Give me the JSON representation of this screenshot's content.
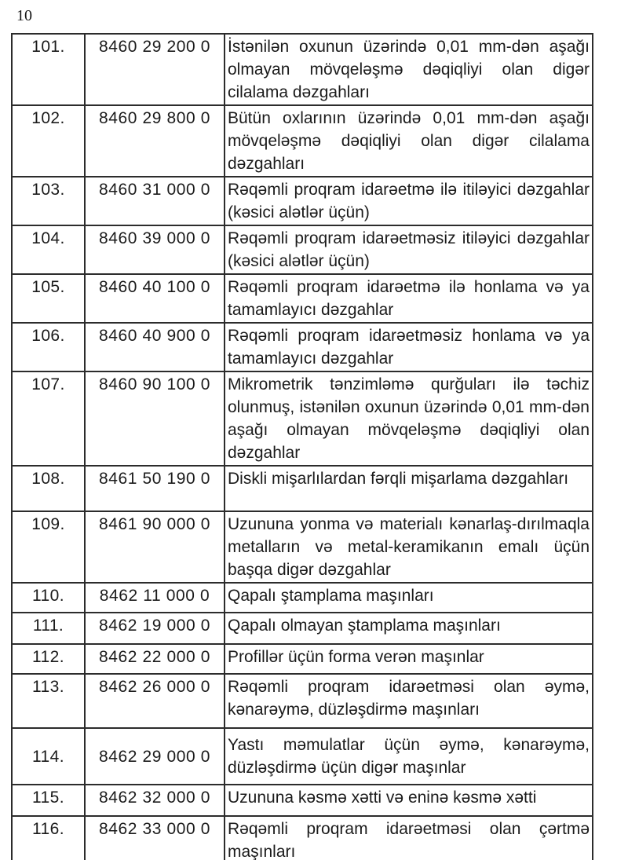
{
  "page": {
    "number": "10"
  },
  "colors": {
    "text": "#1b1b1b",
    "border": "#2c2c2c",
    "background": "#ffffff"
  },
  "table": {
    "rows": [
      {
        "no": "101.",
        "code": "8460 29 200 0",
        "desc": "İstənilən oxunun üzərində 0,01 mm-dən aşağı olmayan mövqeləşmə dəqiqliyi olan digər cilalama dəzgahları"
      },
      {
        "no": "102.",
        "code": "8460 29 800 0",
        "desc": "Bütün oxlarının üzərində 0,01 mm-dən aşağı mövqeləşmə dəqiqliyi olan digər cilalama dəzgahları"
      },
      {
        "no": "103.",
        "code": "8460 31 000 0",
        "desc": "Rəqəmli proqram idarəetmə ilə itiləyici dəzgahlar (kəsici alətlər üçün)"
      },
      {
        "no": "104.",
        "code": "8460 39 000 0",
        "desc": "Rəqəmli proqram idarəetməsiz itiləyici dəzgahlar (kəsici alətlər üçün)"
      },
      {
        "no": "105.",
        "code": "8460 40 100 0",
        "desc": "Rəqəmli proqram idarəetmə ilə honlama və ya tamamlayıcı dəzgahlar"
      },
      {
        "no": "106.",
        "code": "8460 40 900 0",
        "desc": "Rəqəmli proqram idarəetməsiz honlama və ya tamamlayıcı dəzgahlar"
      },
      {
        "no": "107.",
        "code": "8460 90 100 0",
        "desc": "Mikrometrik tənzimləmə qurğuları ilə təchiz olunmuş, istənilən oxunun üzərində 0,01 mm-dən aşağı olmayan mövqeləşmə dəqiqliyi olan dəzgahlar"
      },
      {
        "no": "108.",
        "code": "8461 50 190 0",
        "desc": "Diskli mişarlılardan fərqli mişarlama dəzgahları"
      },
      {
        "no": "109.",
        "code": "8461 90 000 0",
        "desc": "Uzununa yonma və materialı kənarlaş-dırılmaqla metalların və metal-keramikanın emalı üçün başqa digər dəzgahlar"
      },
      {
        "no": "110.",
        "code": "8462 11 000 0",
        "desc": "Qapalı ştamplama maşınları"
      },
      {
        "no": "111.",
        "code": "8462 19 000 0",
        "desc": "Qapalı olmayan ştamplama maşınları"
      },
      {
        "no": "112.",
        "code": "8462 22 000 0",
        "desc": "Profillər üçün forma verən maşınlar"
      },
      {
        "no": "113.",
        "code": "8462 26 000 0",
        "desc": "Rəqəmli proqram idarəetməsi olan əymə, kənarəymə, düzləşdirmə maşınları"
      },
      {
        "no": "114.",
        "code": "8462 29 000 0",
        "desc": "Yastı məmulatlar üçün əymə, kənarəymə, düzləşdirmə üçün digər maşınlar"
      },
      {
        "no": "115.",
        "code": "8462 32 000 0",
        "desc": "Uzununa kəsmə xətti və eninə kəsmə xətti"
      },
      {
        "no": "116.",
        "code": "8462 33 000 0",
        "desc": "Rəqəmli proqram idarəetməsi olan çərtmə maşınları"
      }
    ]
  }
}
